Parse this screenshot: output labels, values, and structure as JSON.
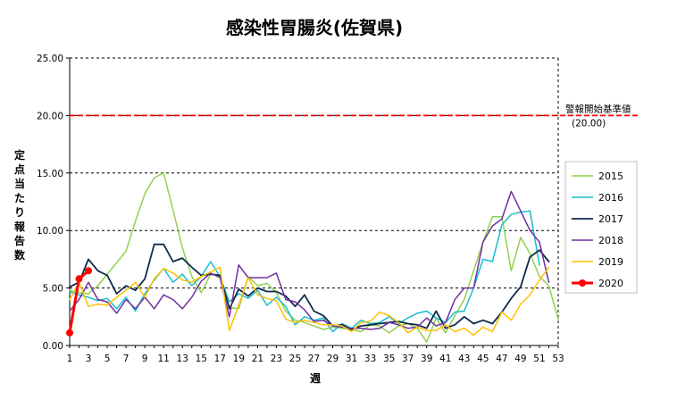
{
  "chart_data": {
    "type": "line",
    "title": "感染性胃腸炎(佐賀県)",
    "xlabel": "週",
    "ylabel": "定点当たり報告数",
    "ylim": [
      0,
      25
    ],
    "y_ticks": [
      "0.00",
      "5.00",
      "10.00",
      "15.00",
      "20.00",
      "25.00"
    ],
    "x_ticks": [
      "1",
      "3",
      "5",
      "7",
      "9",
      "11",
      "13",
      "15",
      "17",
      "19",
      "21",
      "23",
      "25",
      "27",
      "29",
      "31",
      "33",
      "35",
      "37",
      "39",
      "41",
      "43",
      "45",
      "47",
      "49",
      "51",
      "53"
    ],
    "grid": "horizontal dashed",
    "legend_position": "right",
    "threshold": {
      "label_line1": "警報開始基準値",
      "label_line2": "(20.00)",
      "value": 20,
      "color": "#ff0000"
    },
    "series": [
      {
        "name": "2015",
        "color": "#92d050",
        "width": 1.5,
        "marker": false,
        "values": [
          4.8,
          4.6,
          4.5,
          5.2,
          6.2,
          7.2,
          8.2,
          10.8,
          13.2,
          14.6,
          15.0,
          11.8,
          8.5,
          6.0,
          4.6,
          6.2,
          6.0,
          3.3,
          3.2,
          6.0,
          5.2,
          5.4,
          4.6,
          3.0,
          2.2,
          2.0,
          1.7,
          1.4,
          1.6,
          1.5,
          1.4,
          1.2,
          1.8,
          1.7,
          1.1,
          1.7,
          1.9,
          1.5,
          0.3,
          2.4,
          1.1,
          2.6,
          4.0,
          6.5,
          9.0,
          11.2,
          11.2,
          6.5,
          9.4,
          8.0,
          6.0,
          5.2,
          2.3
        ]
      },
      {
        "name": "2016",
        "color": "#17becf",
        "width": 1.5,
        "marker": false,
        "values": [
          4.7,
          4.4,
          4.2,
          3.9,
          4.1,
          3.2,
          4.2,
          3.0,
          4.5,
          5.7,
          6.7,
          5.5,
          6.2,
          5.2,
          6.0,
          7.3,
          6.0,
          3.8,
          4.5,
          4.1,
          4.8,
          3.5,
          4.2,
          3.4,
          1.8,
          2.5,
          2.2,
          2.4,
          1.2,
          1.9,
          1.5,
          2.2,
          1.9,
          2.0,
          2.5,
          1.9,
          2.4,
          2.8,
          3.0,
          2.4,
          2.0,
          2.9,
          3.0,
          5.0,
          7.5,
          7.3,
          10.5,
          11.4,
          11.6,
          11.7,
          7.0,
          0,
          0
        ]
      },
      {
        "name": "2017",
        "color": "#0f2a4a",
        "width": 1.8,
        "marker": false,
        "values": [
          5.1,
          5.5,
          7.5,
          6.5,
          6.1,
          4.5,
          5.2,
          4.8,
          5.8,
          8.8,
          8.8,
          7.3,
          7.6,
          6.8,
          6.1,
          6.2,
          6.1,
          3.2,
          4.9,
          4.3,
          5.0,
          4.7,
          4.7,
          4.3,
          3.4,
          4.4,
          3.0,
          2.6,
          1.7,
          1.8,
          1.4,
          1.7,
          1.8,
          1.9,
          2.0,
          2.1,
          1.9,
          1.8,
          1.5,
          3.0,
          1.5,
          1.8,
          2.5,
          1.9,
          2.2,
          1.9,
          2.9,
          4.1,
          5.1,
          7.7,
          8.3,
          7.3,
          0
        ]
      },
      {
        "name": "2018",
        "color": "#7030a0",
        "width": 1.5,
        "marker": false,
        "values": [
          3.0,
          4.0,
          5.5,
          4.0,
          3.8,
          2.8,
          4.0,
          3.2,
          4.2,
          3.2,
          4.4,
          4.0,
          3.2,
          4.2,
          5.6,
          6.3,
          5.9,
          2.5,
          7.0,
          5.9,
          5.9,
          5.9,
          6.3,
          4.0,
          3.8,
          3.1,
          2.1,
          2.2,
          1.7,
          1.6,
          1.5,
          1.5,
          1.4,
          1.5,
          2.0,
          1.8,
          1.5,
          1.6,
          2.4,
          1.7,
          2.0,
          4.0,
          5.0,
          5.0,
          9.0,
          10.4,
          11.0,
          13.4,
          11.7,
          10.0,
          9.0,
          5.5,
          0
        ]
      },
      {
        "name": "2019",
        "color": "#ffc000",
        "width": 1.5,
        "marker": false,
        "values": [
          4.0,
          5.5,
          3.4,
          3.6,
          3.5,
          4.2,
          4.8,
          5.5,
          4.2,
          5.8,
          6.7,
          6.3,
          5.7,
          5.5,
          6.0,
          6.4,
          6.8,
          1.3,
          3.5,
          5.9,
          4.4,
          4.1,
          3.9,
          2.3,
          2.0,
          2.2,
          2.0,
          1.8,
          1.8,
          1.7,
          1.2,
          2.0,
          2.1,
          2.9,
          2.6,
          2.0,
          1.1,
          1.6,
          1.3,
          1.3,
          1.8,
          1.2,
          1.5,
          0.9,
          1.6,
          1.2,
          2.9,
          2.2,
          3.6,
          4.4,
          5.7,
          6.8,
          0
        ]
      },
      {
        "name": "2020",
        "color": "#ff0000",
        "width": 3,
        "marker": true,
        "values": [
          1.1,
          5.8,
          6.5
        ]
      }
    ]
  }
}
